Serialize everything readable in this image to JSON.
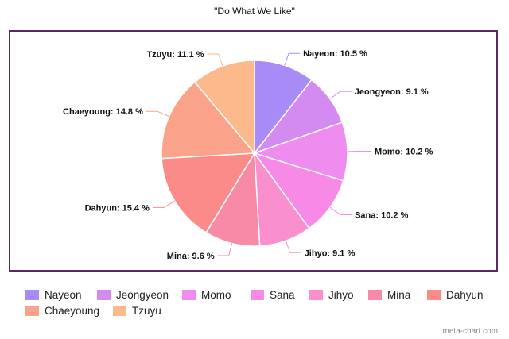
{
  "chart_data": {
    "type": "pie",
    "title": "\"Do What We Like\"",
    "slices": [
      {
        "name": "Nayeon",
        "value": 10.5,
        "label": "Nayeon: 10.5 %",
        "color": "#a98bf7"
      },
      {
        "name": "Jeongyeon",
        "value": 9.1,
        "label": "Jeongyeon: 9.1 %",
        "color": "#d38bf2"
      },
      {
        "name": "Momo",
        "value": 10.2,
        "label": "Momo: 10.2 %",
        "color": "#ee8cf0"
      },
      {
        "name": "Sana",
        "value": 10.2,
        "label": "Sana: 10.2 %",
        "color": "#f78ae6"
      },
      {
        "name": "Jihyo",
        "value": 9.1,
        "label": "Jihyo: 9.1 %",
        "color": "#f98fcc"
      },
      {
        "name": "Mina",
        "value": 9.6,
        "label": "Mina: 9.6 %",
        "color": "#f98aa6"
      },
      {
        "name": "Dahyun",
        "value": 15.4,
        "label": "Dahyun: 15.4 %",
        "color": "#fa8b88"
      },
      {
        "name": "Chaeyoung",
        "value": 14.8,
        "label": "Chaeyoung: 14.8 %",
        "color": "#fba38a"
      },
      {
        "name": "Tzuyu",
        "value": 11.1,
        "label": "Tzuyu: 11.1 %",
        "color": "#fbb98c"
      }
    ],
    "legend_position": "bottom"
  },
  "watermark": "meta-chart.com"
}
